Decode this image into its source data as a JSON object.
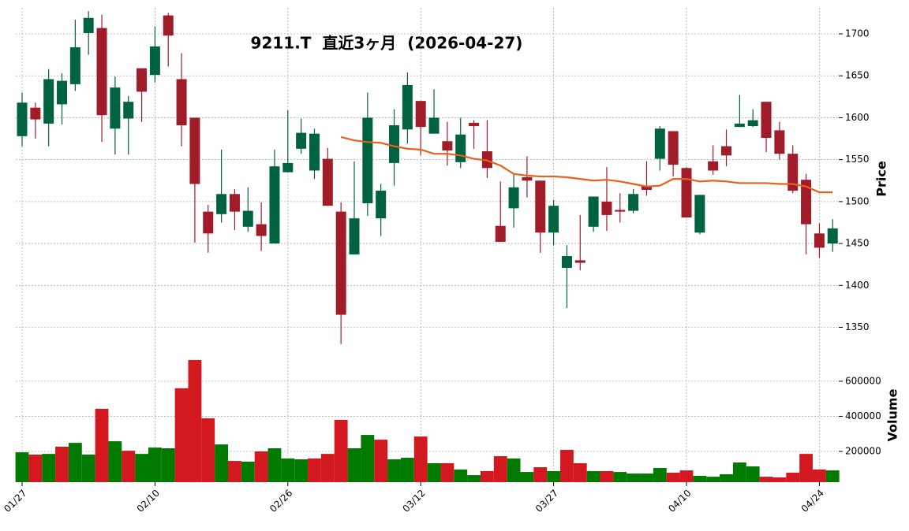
{
  "chart_data": {
    "type": "candlestick",
    "title": "9211.T  直近3ヶ月  (2026-04-27)",
    "y_label": "Price",
    "volume_label": "Volume",
    "categories": [
      "01/27",
      null,
      null,
      null,
      null,
      null,
      null,
      null,
      null,
      null,
      "02/10",
      null,
      null,
      null,
      null,
      null,
      null,
      null,
      null,
      null,
      "02/26",
      null,
      null,
      null,
      null,
      null,
      null,
      null,
      null,
      null,
      "03/12",
      null,
      null,
      null,
      null,
      null,
      null,
      null,
      null,
      null,
      "03/27",
      null,
      null,
      null,
      null,
      null,
      null,
      null,
      null,
      null,
      "04/10",
      null,
      null,
      null,
      null,
      null,
      null,
      null,
      null,
      null,
      "04/24",
      null
    ],
    "open": [
      1578,
      1612,
      1593,
      1616,
      1640,
      1701,
      1707,
      1587,
      1599,
      1659,
      1651,
      1722,
      1646,
      1600,
      1488,
      1485,
      1509,
      1470,
      1473,
      1450,
      1535,
      1563,
      1537,
      1551,
      1488,
      1437,
      1498,
      1480,
      1546,
      1586,
      1620,
      1581,
      1572,
      1547,
      1594,
      1560,
      1471,
      1492,
      1529,
      1525,
      1463,
      1421,
      1430,
      1470,
      1500,
      1490,
      1489,
      1519,
      1551,
      1584,
      1540,
      1463,
      1548,
      1566,
      1589,
      1590,
      1619,
      1585,
      1557,
      1526,
      1462,
      1450
    ],
    "high": [
      1630,
      1618,
      1658,
      1653,
      1717,
      1727,
      1723,
      1649,
      1626,
      1659,
      1709,
      1725,
      1677,
      1600,
      1496,
      1562,
      1515,
      1517,
      1499,
      1562,
      1609,
      1599,
      1587,
      1564,
      1499,
      1548,
      1630,
      1521,
      1610,
      1654,
      1620,
      1634,
      1595,
      1600,
      1597,
      1597,
      1524,
      1534,
      1554,
      1525,
      1502,
      1448,
      1484,
      1506,
      1541,
      1510,
      1515,
      1548,
      1590,
      1584,
      1541,
      1508,
      1567,
      1586,
      1627,
      1610,
      1619,
      1595,
      1567,
      1533,
      1474,
      1479
    ],
    "low": [
      1566,
      1575,
      1566,
      1592,
      1632,
      1675,
      1571,
      1556,
      1556,
      1595,
      1642,
      1661,
      1566,
      1451,
      1439,
      1475,
      1466,
      1464,
      1441,
      1450,
      1535,
      1557,
      1527,
      1495,
      1330,
      1437,
      1483,
      1459,
      1519,
      1569,
      1555,
      1581,
      1543,
      1540,
      1563,
      1528,
      1452,
      1469,
      1505,
      1439,
      1448,
      1373,
      1418,
      1464,
      1465,
      1475,
      1486,
      1507,
      1537,
      1530,
      1481,
      1461,
      1532,
      1542,
      1589,
      1589,
      1559,
      1550,
      1510,
      1437,
      1433,
      1440
    ],
    "close": [
      1618,
      1598,
      1646,
      1644,
      1684,
      1719,
      1603,
      1636,
      1619,
      1631,
      1685,
      1698,
      1591,
      1521,
      1462,
      1509,
      1488,
      1489,
      1459,
      1542,
      1546,
      1582,
      1581,
      1495,
      1365,
      1480,
      1600,
      1513,
      1591,
      1639,
      1589,
      1600,
      1561,
      1580,
      1590,
      1540,
      1452,
      1517,
      1525,
      1463,
      1495,
      1435,
      1427,
      1506,
      1484,
      1488,
      1509,
      1514,
      1587,
      1544,
      1481,
      1508,
      1537,
      1555,
      1593,
      1597,
      1576,
      1557,
      1513,
      1473,
      1445,
      1468
    ],
    "volume": [
      195000,
      182000,
      186000,
      227000,
      249000,
      182000,
      443000,
      258000,
      204000,
      186000,
      222000,
      218000,
      560000,
      721000,
      389000,
      240000,
      146000,
      142000,
      200000,
      218000,
      160000,
      155000,
      160000,
      186000,
      380000,
      218000,
      294000,
      267000,
      155000,
      164000,
      285000,
      133000,
      133000,
      97000,
      65000,
      88000,
      173000,
      160000,
      83000,
      110000,
      88000,
      209000,
      133000,
      88000,
      88000,
      83000,
      74000,
      74000,
      106000,
      79000,
      92000,
      61000,
      56000,
      70000,
      137000,
      115000,
      56000,
      52000,
      79000,
      186000,
      97000,
      92000
    ],
    "ma": {
      "color": "#e8601c",
      "values": [
        null,
        null,
        null,
        null,
        null,
        null,
        null,
        null,
        null,
        null,
        null,
        null,
        null,
        null,
        null,
        null,
        null,
        null,
        null,
        null,
        null,
        null,
        null,
        null,
        1577,
        1573,
        1571,
        1570,
        1566,
        1563,
        1562,
        1557,
        1557,
        1555,
        1551,
        1549,
        1543,
        1533,
        1531,
        1530,
        1530,
        1529,
        1527,
        1525,
        1526,
        1524,
        1521,
        1518,
        1519,
        1527,
        1527,
        1524,
        1525,
        1524,
        1522,
        1522,
        1522,
        1521,
        1521,
        1518,
        1511,
        1511
      ]
    },
    "up_color": "#006340",
    "down_color": "#a01c28",
    "volume_up_color": "#007a00",
    "volume_down_color": "#d41820",
    "ylim": [
      1327,
      1731
    ],
    "yticks": [
      1350,
      1400,
      1450,
      1500,
      1550,
      1600,
      1650,
      1700
    ],
    "volume_ylim": [
      25000,
      797000
    ],
    "volume_yticks": [
      200000,
      400000,
      600000
    ],
    "grid": true
  }
}
